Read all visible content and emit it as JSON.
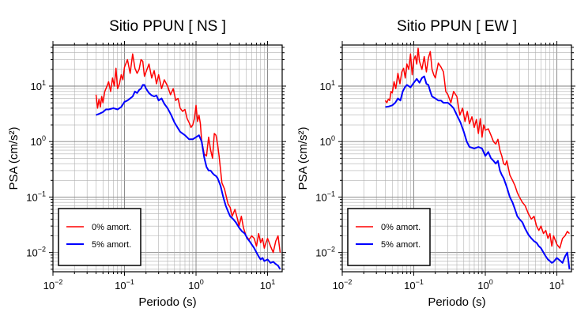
{
  "chart_data": [
    {
      "type": "line",
      "title": "Sitio PPUN [ NS ]",
      "xlabel": "Periodo (s)",
      "ylabel": "PSA (cm/s²)",
      "xscale": "log",
      "yscale": "log",
      "xlim": [
        0.01,
        16
      ],
      "ylim": [
        0.0045,
        55
      ],
      "grid": true,
      "legend": "bottom-left",
      "x_ticks": [
        {
          "value": 0.01,
          "base": "10",
          "exp": "−2"
        },
        {
          "value": 0.1,
          "base": "10",
          "exp": "−1"
        },
        {
          "value": 1,
          "base": "10",
          "exp": "0"
        },
        {
          "value": 10,
          "base": "10",
          "exp": "1"
        }
      ],
      "y_ticks": [
        {
          "value": 0.01,
          "base": "10",
          "exp": "−2"
        },
        {
          "value": 0.1,
          "base": "10",
          "exp": "−1"
        },
        {
          "value": 1,
          "base": "10",
          "exp": "0"
        },
        {
          "value": 10,
          "base": "10",
          "exp": "1"
        }
      ],
      "series": [
        {
          "name": "0% amort.",
          "color": "#ff0000",
          "x": [
            0.04,
            0.042,
            0.044,
            0.046,
            0.048,
            0.05,
            0.053,
            0.056,
            0.06,
            0.064,
            0.068,
            0.072,
            0.076,
            0.08,
            0.085,
            0.09,
            0.095,
            0.1,
            0.11,
            0.12,
            0.13,
            0.14,
            0.15,
            0.16,
            0.17,
            0.18,
            0.19,
            0.2,
            0.22,
            0.24,
            0.26,
            0.28,
            0.3,
            0.33,
            0.36,
            0.4,
            0.44,
            0.48,
            0.52,
            0.56,
            0.6,
            0.65,
            0.7,
            0.75,
            0.8,
            0.85,
            0.9,
            0.95,
            1.0,
            1.05,
            1.1,
            1.15,
            1.2,
            1.3,
            1.4,
            1.5,
            1.6,
            1.7,
            1.8,
            1.9,
            2.0,
            2.1,
            2.3,
            2.5,
            2.8,
            3.0,
            3.2,
            3.5,
            3.8,
            4.0,
            4.3,
            4.6,
            5.0,
            5.5,
            6.0,
            6.5,
            7.0,
            7.5,
            8.0,
            8.5,
            9.0,
            9.5,
            10,
            11,
            12,
            13,
            14,
            15
          ],
          "y": [
            7,
            4,
            5.8,
            4.2,
            6.5,
            5,
            8,
            9.5,
            12,
            8,
            14,
            10,
            21,
            9,
            11,
            16,
            13,
            22,
            30,
            17,
            38,
            21,
            17,
            20,
            30,
            28,
            15,
            18,
            25,
            14,
            19,
            11,
            16,
            9,
            13,
            10,
            7,
            9,
            5.5,
            6,
            4,
            3.5,
            3.8,
            2.6,
            2.2,
            1.8,
            2.0,
            2.6,
            4.5,
            2.3,
            3.0,
            2.1,
            1.0,
            0.6,
            0.55,
            1.2,
            0.7,
            0.5,
            1.4,
            1.3,
            0.9,
            0.55,
            0.18,
            0.14,
            0.075,
            0.065,
            0.045,
            0.06,
            0.04,
            0.03,
            0.045,
            0.028,
            0.02,
            0.017,
            0.02,
            0.018,
            0.013,
            0.022,
            0.015,
            0.018,
            0.012,
            0.015,
            0.018,
            0.013,
            0.01,
            0.016,
            0.02,
            0.01
          ]
        },
        {
          "name": "5% amort.",
          "color": "#0000ff",
          "x": [
            0.04,
            0.045,
            0.05,
            0.055,
            0.06,
            0.07,
            0.08,
            0.09,
            0.1,
            0.11,
            0.12,
            0.13,
            0.14,
            0.15,
            0.16,
            0.17,
            0.18,
            0.19,
            0.2,
            0.22,
            0.24,
            0.26,
            0.28,
            0.3,
            0.33,
            0.36,
            0.4,
            0.45,
            0.5,
            0.55,
            0.6,
            0.7,
            0.8,
            0.9,
            1.0,
            1.1,
            1.2,
            1.3,
            1.4,
            1.5,
            1.6,
            1.7,
            1.8,
            1.9,
            2.0,
            2.2,
            2.4,
            2.6,
            2.8,
            3.0,
            3.3,
            3.6,
            4.0,
            4.4,
            4.8,
            5.2,
            5.6,
            6.0,
            6.5,
            7.0,
            7.5,
            8.0,
            8.5,
            9.0,
            10,
            11,
            12,
            13,
            14,
            15
          ],
          "y": [
            3.0,
            3.2,
            3.4,
            3.8,
            3.8,
            4.0,
            3.8,
            4.2,
            5.2,
            5.5,
            6.0,
            6.5,
            8.0,
            7.5,
            8.5,
            9.0,
            10.5,
            10.5,
            9.0,
            7.5,
            6.8,
            6.5,
            6.8,
            5.5,
            6.0,
            4.8,
            4.0,
            3.0,
            2.2,
            1.8,
            1.5,
            1.3,
            1.1,
            1.1,
            1.2,
            1.3,
            1.0,
            0.52,
            0.35,
            0.3,
            0.3,
            0.27,
            0.25,
            0.24,
            0.22,
            0.16,
            0.1,
            0.07,
            0.055,
            0.045,
            0.04,
            0.035,
            0.028,
            0.024,
            0.022,
            0.018,
            0.016,
            0.014,
            0.012,
            0.01,
            0.0085,
            0.0075,
            0.008,
            0.007,
            0.0075,
            0.0065,
            0.0068,
            0.0062,
            0.0058,
            0.005
          ]
        }
      ]
    },
    {
      "type": "line",
      "title": "Sitio PPUN [ EW ]",
      "xlabel": "Periodo (s)",
      "ylabel": "PSA (cm/s²)",
      "xscale": "log",
      "yscale": "log",
      "xlim": [
        0.01,
        16
      ],
      "ylim": [
        0.0045,
        55
      ],
      "grid": true,
      "legend": "bottom-left",
      "x_ticks": [
        {
          "value": 0.01,
          "base": "10",
          "exp": "−2"
        },
        {
          "value": 0.1,
          "base": "10",
          "exp": "−1"
        },
        {
          "value": 1,
          "base": "10",
          "exp": "0"
        },
        {
          "value": 10,
          "base": "10",
          "exp": "1"
        }
      ],
      "y_ticks": [
        {
          "value": 0.01,
          "base": "10",
          "exp": "−2"
        },
        {
          "value": 0.1,
          "base": "10",
          "exp": "−1"
        },
        {
          "value": 1,
          "base": "10",
          "exp": "0"
        },
        {
          "value": 10,
          "base": "10",
          "exp": "1"
        }
      ],
      "series": [
        {
          "name": "0% amort.",
          "color": "#ff0000",
          "x": [
            0.04,
            0.042,
            0.044,
            0.046,
            0.048,
            0.05,
            0.053,
            0.056,
            0.06,
            0.064,
            0.068,
            0.072,
            0.076,
            0.08,
            0.085,
            0.09,
            0.095,
            0.1,
            0.105,
            0.11,
            0.115,
            0.12,
            0.13,
            0.14,
            0.15,
            0.16,
            0.17,
            0.18,
            0.19,
            0.2,
            0.22,
            0.24,
            0.26,
            0.28,
            0.3,
            0.33,
            0.36,
            0.4,
            0.44,
            0.48,
            0.52,
            0.56,
            0.6,
            0.65,
            0.7,
            0.75,
            0.8,
            0.85,
            0.9,
            0.95,
            1.0,
            1.1,
            1.2,
            1.3,
            1.4,
            1.5,
            1.6,
            1.7,
            1.8,
            1.9,
            2.0,
            2.2,
            2.4,
            2.6,
            2.8,
            3.0,
            3.3,
            3.6,
            4.0,
            4.4,
            4.8,
            5.2,
            5.6,
            6.0,
            6.5,
            7.0,
            7.5,
            8.0,
            8.5,
            9.0,
            10,
            11,
            12,
            13,
            14,
            15
          ],
          "y": [
            5.5,
            5.0,
            5.8,
            5.5,
            8,
            7.5,
            12,
            9,
            17,
            11,
            18,
            21,
            14,
            25,
            20,
            38,
            16,
            30,
            35,
            25,
            48,
            28,
            20,
            34,
            18,
            32,
            42,
            20,
            16,
            14,
            26,
            22,
            18,
            8,
            7,
            5,
            8,
            6.5,
            3,
            4,
            2.3,
            3.5,
            2.1,
            2.8,
            1.8,
            2.5,
            1.4,
            2.6,
            1.2,
            2.0,
            1.6,
            1.7,
            1.3,
            1.0,
            0.9,
            1.1,
            0.7,
            0.55,
            0.4,
            0.38,
            0.45,
            0.25,
            0.2,
            0.16,
            0.12,
            0.1,
            0.08,
            0.07,
            0.05,
            0.04,
            0.045,
            0.03,
            0.025,
            0.03,
            0.022,
            0.025,
            0.018,
            0.022,
            0.013,
            0.02,
            0.014,
            0.012,
            0.018,
            0.02,
            0.024,
            0.022
          ]
        },
        {
          "name": "5% amort.",
          "color": "#0000ff",
          "x": [
            0.04,
            0.045,
            0.05,
            0.055,
            0.06,
            0.065,
            0.07,
            0.075,
            0.08,
            0.085,
            0.09,
            0.1,
            0.11,
            0.12,
            0.13,
            0.14,
            0.15,
            0.16,
            0.17,
            0.18,
            0.2,
            0.22,
            0.24,
            0.26,
            0.28,
            0.3,
            0.33,
            0.36,
            0.4,
            0.45,
            0.5,
            0.55,
            0.6,
            0.7,
            0.8,
            0.9,
            1.0,
            1.1,
            1.2,
            1.3,
            1.4,
            1.5,
            1.6,
            1.7,
            1.8,
            2.0,
            2.2,
            2.4,
            2.6,
            2.8,
            3.0,
            3.3,
            3.6,
            4.0,
            4.4,
            4.8,
            5.2,
            5.6,
            6.0,
            6.5,
            7.0,
            7.5,
            8.0,
            8.5,
            9.0,
            10,
            11,
            12,
            13,
            14,
            15
          ],
          "y": [
            4.2,
            4.3,
            4.5,
            5.0,
            6.0,
            5.5,
            8.0,
            9.5,
            10.5,
            10.0,
            9.5,
            11.5,
            13.5,
            11.5,
            14.0,
            15.0,
            11.0,
            10.5,
            8.0,
            6.5,
            6.0,
            5.5,
            5.5,
            5.0,
            5.0,
            5.0,
            4.5,
            4.0,
            3.0,
            2.2,
            1.5,
            1.0,
            0.8,
            0.75,
            0.8,
            0.75,
            0.55,
            0.65,
            0.5,
            0.45,
            0.4,
            0.45,
            0.3,
            0.25,
            0.22,
            0.15,
            0.1,
            0.08,
            0.06,
            0.045,
            0.04,
            0.035,
            0.027,
            0.021,
            0.018,
            0.016,
            0.015,
            0.013,
            0.012,
            0.01,
            0.0085,
            0.0075,
            0.007,
            0.0065,
            0.0068,
            0.008,
            0.0072,
            0.0065,
            0.0085,
            0.01,
            0.005
          ]
        }
      ]
    }
  ]
}
